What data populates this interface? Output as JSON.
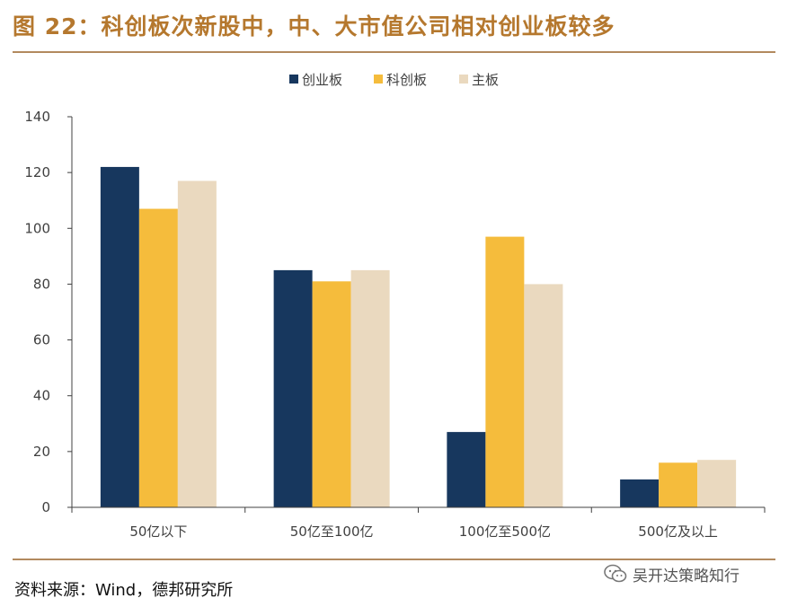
{
  "header": {
    "title": "图 22：科创板次新股中，中、大市值公司相对创业板较多"
  },
  "footer": {
    "source": "资料来源：Wind，德邦研究所"
  },
  "watermark": {
    "text": "吴开达策略知行",
    "icon": "wechat-icon"
  },
  "chart_data": {
    "type": "bar",
    "categories": [
      "50亿以下",
      "50亿至100亿",
      "100亿至500亿",
      "500亿及以上"
    ],
    "series": [
      {
        "name": "创业板",
        "color": "#17375e",
        "values": [
          122,
          85,
          27,
          10
        ]
      },
      {
        "name": "科创板",
        "color": "#f5bc3c",
        "values": [
          107,
          81,
          97,
          16
        ]
      },
      {
        "name": "主板",
        "color": "#ead9bf",
        "values": [
          117,
          85,
          80,
          17
        ]
      }
    ],
    "yticks": [
      "0",
      "20",
      "40",
      "60",
      "80",
      "100",
      "120",
      "140"
    ],
    "ylim": [
      0,
      140
    ],
    "legend": "top-center",
    "grid": false
  }
}
